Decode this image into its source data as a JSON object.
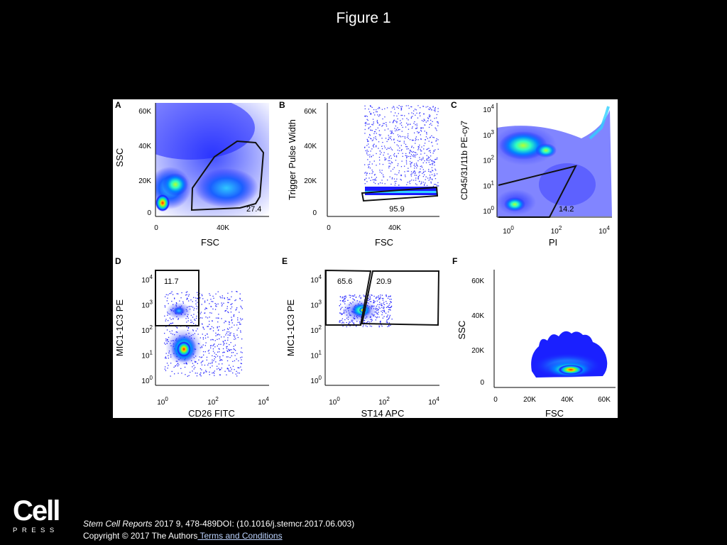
{
  "slide_title": "Figure 1",
  "logo": {
    "word": "Cell",
    "subword": "PRESS"
  },
  "citation": {
    "journal": "Stem Cell Reports",
    "rest": " 2017 9, 478-489DOI: (10.1016/j.stemcr.2017.06.003)"
  },
  "copyright": {
    "text": "Copyright © 2017 The Authors",
    "link": " Terms and Conditions"
  },
  "colors": {
    "background": "#000000",
    "panel": "#ffffff",
    "low_density": "#1a1aff",
    "high_density": "#ff2a00"
  },
  "chart_data": [
    {
      "panel": "A",
      "type": "scatter",
      "xlabel": "FSC",
      "ylabel": "SSC",
      "xticks": [
        "0",
        "40K"
      ],
      "yticks": [
        "0",
        "20K",
        "40K",
        "60K"
      ],
      "xlim": [
        0,
        65000
      ],
      "ylim": [
        0,
        65000
      ],
      "gate_label": "27.4"
    },
    {
      "panel": "B",
      "type": "scatter",
      "xlabel": "FSC",
      "ylabel": "Trigger Pulse Width",
      "xticks": [
        "0",
        "40K"
      ],
      "yticks": [
        "0",
        "20K",
        "40K",
        "60K"
      ],
      "xlim": [
        0,
        65000
      ],
      "ylim": [
        0,
        65000
      ],
      "gate_label": "95.9"
    },
    {
      "panel": "C",
      "type": "scatter",
      "xlabel": "PI",
      "ylabel": "CD45/31/11b PE-cy7",
      "xticks": [
        {
          "base": "10",
          "exp": "0"
        },
        {
          "base": "10",
          "exp": "2"
        },
        {
          "base": "10",
          "exp": "4"
        }
      ],
      "yticks": [
        {
          "base": "10",
          "exp": "0"
        },
        {
          "base": "10",
          "exp": "1"
        },
        {
          "base": "10",
          "exp": "2"
        },
        {
          "base": "10",
          "exp": "3"
        },
        {
          "base": "10",
          "exp": "4"
        }
      ],
      "xscale": "log",
      "yscale": "log",
      "gate_label": "14.2"
    },
    {
      "panel": "D",
      "type": "scatter",
      "xlabel": "CD26 FITC",
      "ylabel": "MIC1-1C3 PE",
      "xticks": [
        {
          "base": "10",
          "exp": "0"
        },
        {
          "base": "10",
          "exp": "2"
        },
        {
          "base": "10",
          "exp": "4"
        }
      ],
      "yticks": [
        {
          "base": "10",
          "exp": "0"
        },
        {
          "base": "10",
          "exp": "1"
        },
        {
          "base": "10",
          "exp": "2"
        },
        {
          "base": "10",
          "exp": "3"
        },
        {
          "base": "10",
          "exp": "4"
        }
      ],
      "xscale": "log",
      "yscale": "log",
      "gate_label": "11.7"
    },
    {
      "panel": "E",
      "type": "scatter",
      "xlabel": "ST14 APC",
      "ylabel": "MIC1-1C3 PE",
      "xticks": [
        {
          "base": "10",
          "exp": "0"
        },
        {
          "base": "10",
          "exp": "2"
        },
        {
          "base": "10",
          "exp": "4"
        }
      ],
      "yticks": [
        {
          "base": "10",
          "exp": "0"
        },
        {
          "base": "10",
          "exp": "1"
        },
        {
          "base": "10",
          "exp": "2"
        },
        {
          "base": "10",
          "exp": "3"
        },
        {
          "base": "10",
          "exp": "4"
        }
      ],
      "xscale": "log",
      "yscale": "log",
      "gate_labels": [
        "65.6",
        "20.9"
      ]
    },
    {
      "panel": "F",
      "type": "scatter",
      "xlabel": "FSC",
      "ylabel": "SSC",
      "xticks": [
        "0",
        "20K",
        "40K",
        "60K"
      ],
      "yticks": [
        "0",
        "20K",
        "40K",
        "60K"
      ],
      "xlim": [
        0,
        65000
      ],
      "ylim": [
        0,
        65000
      ]
    }
  ]
}
